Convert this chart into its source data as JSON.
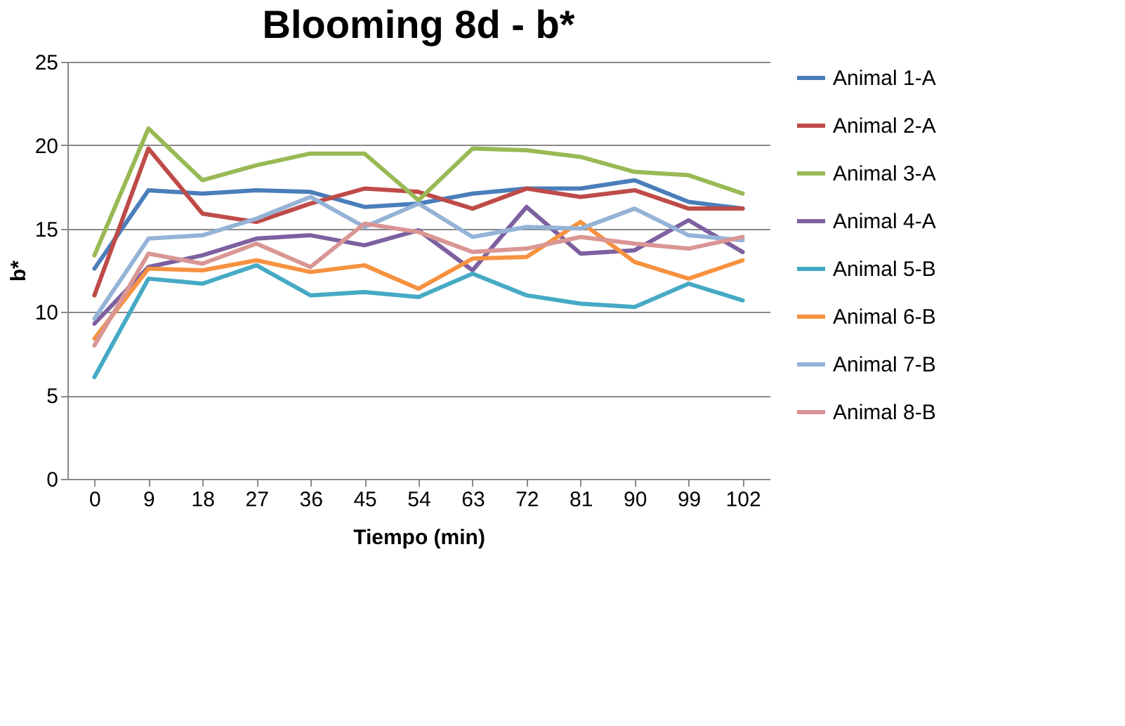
{
  "chart_data": {
    "type": "line",
    "title": "Blooming 8d - b*",
    "xlabel": "Tiempo (min)",
    "ylabel": "b*",
    "categories": [
      "0",
      "9",
      "18",
      "27",
      "36",
      "45",
      "54",
      "63",
      "72",
      "81",
      "90",
      "99",
      "102"
    ],
    "ylim": [
      0,
      25
    ],
    "yticks": [
      0,
      5,
      10,
      15,
      20,
      25
    ],
    "grid": "y",
    "legend": "right",
    "marker": "none",
    "line_style": "solid",
    "series": [
      {
        "name": "Animal 1-A",
        "color": "#4a7ebb",
        "values": [
          12.6,
          17.3,
          17.1,
          17.3,
          17.2,
          16.3,
          16.5,
          17.1,
          17.4,
          17.4,
          17.9,
          16.6,
          16.2
        ]
      },
      {
        "name": "Animal 2-A",
        "color": "#be4b48",
        "values": [
          11.0,
          19.8,
          15.9,
          15.4,
          16.5,
          17.4,
          17.2,
          16.2,
          17.4,
          16.9,
          17.3,
          16.2,
          16.2
        ]
      },
      {
        "name": "Animal 3-A",
        "color": "#98b954",
        "values": [
          13.4,
          21.0,
          17.9,
          18.8,
          19.5,
          19.5,
          16.7,
          19.8,
          19.7,
          19.3,
          18.4,
          18.2,
          17.1
        ]
      },
      {
        "name": "Animal 4-A",
        "color": "#7d60a0",
        "values": [
          9.3,
          12.7,
          13.4,
          14.4,
          14.6,
          14.0,
          14.9,
          12.5,
          16.3,
          13.5,
          13.7,
          15.5,
          13.6
        ]
      },
      {
        "name": "Animal 5-B",
        "color": "#46aac5",
        "values": [
          6.1,
          12.0,
          11.7,
          12.8,
          11.0,
          11.2,
          10.9,
          12.3,
          11.0,
          10.5,
          10.3,
          11.7,
          10.7
        ]
      },
      {
        "name": "Animal 6-B",
        "color": "#f69240",
        "values": [
          8.4,
          12.6,
          12.5,
          13.1,
          12.4,
          12.8,
          11.4,
          13.2,
          13.3,
          15.4,
          13.0,
          12.0,
          13.1
        ]
      },
      {
        "name": "Animal 7-B",
        "color": "#95b3d7",
        "values": [
          9.6,
          14.4,
          14.6,
          15.6,
          16.9,
          15.1,
          16.5,
          14.5,
          15.1,
          15.0,
          16.2,
          14.6,
          14.3
        ]
      },
      {
        "name": "Animal 8-B",
        "color": "#d99694",
        "values": [
          8.0,
          13.5,
          12.9,
          14.1,
          12.7,
          15.3,
          14.8,
          13.6,
          13.8,
          14.5,
          14.1,
          13.8,
          14.5
        ]
      }
    ]
  }
}
